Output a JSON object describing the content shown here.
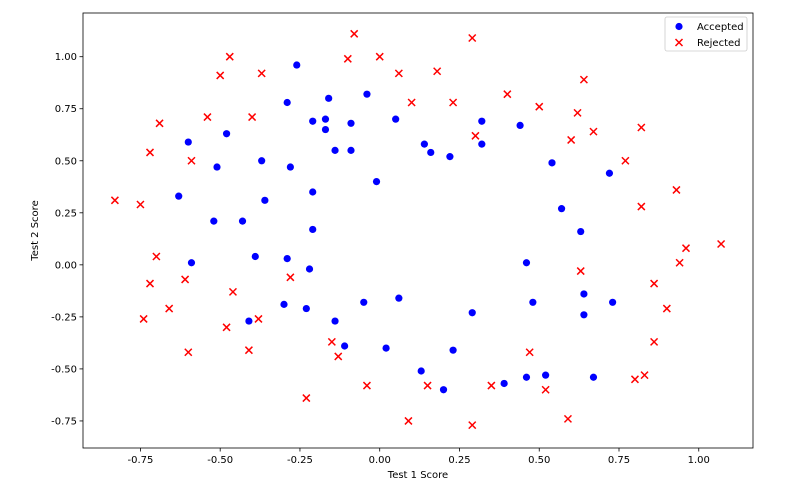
{
  "chart_data": {
    "type": "scatter",
    "xlabel": "Test 1 Score",
    "ylabel": "Test 2 Score",
    "xlim": [
      -0.93,
      1.17
    ],
    "ylim": [
      -0.88,
      1.21
    ],
    "x_ticks": [
      "-0.75",
      "-0.50",
      "-0.25",
      "0.00",
      "0.25",
      "0.50",
      "0.75",
      "1.00"
    ],
    "x_tick_values": [
      -0.75,
      -0.5,
      -0.25,
      0.0,
      0.25,
      0.5,
      0.75,
      1.0
    ],
    "y_ticks": [
      "-0.75",
      "-0.50",
      "-0.25",
      "0.00",
      "0.25",
      "0.50",
      "0.75",
      "1.00"
    ],
    "y_tick_values": [
      -0.75,
      -0.5,
      -0.25,
      0.0,
      0.25,
      0.5,
      0.75,
      1.0
    ],
    "legend_position": "top-right",
    "series": [
      {
        "name": "Accepted",
        "marker": "circle",
        "color": "#0000ff",
        "points": [
          [
            -0.26,
            0.96
          ],
          [
            -0.04,
            0.82
          ],
          [
            -0.16,
            0.8
          ],
          [
            -0.29,
            0.78
          ],
          [
            0.05,
            0.7
          ],
          [
            -0.21,
            0.69
          ],
          [
            -0.17,
            0.7
          ],
          [
            -0.09,
            0.68
          ],
          [
            0.32,
            0.69
          ],
          [
            -0.17,
            0.65
          ],
          [
            0.44,
            0.67
          ],
          [
            -0.48,
            0.63
          ],
          [
            -0.6,
            0.59
          ],
          [
            0.14,
            0.58
          ],
          [
            0.32,
            0.58
          ],
          [
            -0.14,
            0.55
          ],
          [
            -0.09,
            0.55
          ],
          [
            0.16,
            0.54
          ],
          [
            0.22,
            0.52
          ],
          [
            -0.37,
            0.5
          ],
          [
            0.54,
            0.49
          ],
          [
            -0.51,
            0.47
          ],
          [
            -0.28,
            0.47
          ],
          [
            0.72,
            0.44
          ],
          [
            -0.01,
            0.4
          ],
          [
            -0.21,
            0.35
          ],
          [
            -0.63,
            0.33
          ],
          [
            -0.36,
            0.31
          ],
          [
            0.57,
            0.27
          ],
          [
            -0.52,
            0.21
          ],
          [
            -0.43,
            0.21
          ],
          [
            -0.21,
            0.17
          ],
          [
            0.63,
            0.16
          ],
          [
            -0.39,
            0.04
          ],
          [
            -0.29,
            0.03
          ],
          [
            -0.59,
            0.01
          ],
          [
            0.46,
            0.01
          ],
          [
            -0.22,
            -0.02
          ],
          [
            0.64,
            -0.14
          ],
          [
            -0.05,
            -0.18
          ],
          [
            0.48,
            -0.18
          ],
          [
            0.73,
            -0.18
          ],
          [
            0.06,
            -0.16
          ],
          [
            -0.3,
            -0.19
          ],
          [
            -0.23,
            -0.21
          ],
          [
            0.29,
            -0.23
          ],
          [
            0.64,
            -0.24
          ],
          [
            -0.41,
            -0.27
          ],
          [
            -0.14,
            -0.27
          ],
          [
            -0.11,
            -0.39
          ],
          [
            0.02,
            -0.4
          ],
          [
            0.23,
            -0.41
          ],
          [
            0.13,
            -0.51
          ],
          [
            0.52,
            -0.53
          ],
          [
            0.46,
            -0.54
          ],
          [
            0.67,
            -0.54
          ],
          [
            0.39,
            -0.57
          ],
          [
            0.2,
            -0.6
          ]
        ]
      },
      {
        "name": "Rejected",
        "marker": "x",
        "color": "#ff0000",
        "points": [
          [
            -0.08,
            1.11
          ],
          [
            0.29,
            1.09
          ],
          [
            -0.47,
            1.0
          ],
          [
            -0.1,
            0.99
          ],
          [
            0.0,
            1.0
          ],
          [
            -0.5,
            0.91
          ],
          [
            -0.37,
            0.92
          ],
          [
            0.06,
            0.92
          ],
          [
            0.18,
            0.93
          ],
          [
            0.64,
            0.89
          ],
          [
            0.4,
            0.82
          ],
          [
            0.1,
            0.78
          ],
          [
            0.23,
            0.78
          ],
          [
            0.5,
            0.76
          ],
          [
            0.62,
            0.73
          ],
          [
            -0.54,
            0.71
          ],
          [
            -0.4,
            0.71
          ],
          [
            -0.69,
            0.68
          ],
          [
            0.82,
            0.66
          ],
          [
            0.67,
            0.64
          ],
          [
            0.3,
            0.62
          ],
          [
            0.6,
            0.6
          ],
          [
            -0.72,
            0.54
          ],
          [
            -0.59,
            0.5
          ],
          [
            0.77,
            0.5
          ],
          [
            0.93,
            0.36
          ],
          [
            -0.83,
            0.31
          ],
          [
            -0.75,
            0.29
          ],
          [
            0.82,
            0.28
          ],
          [
            1.07,
            0.1
          ],
          [
            0.96,
            0.08
          ],
          [
            0.94,
            0.01
          ],
          [
            -0.7,
            0.04
          ],
          [
            0.63,
            -0.03
          ],
          [
            -0.61,
            -0.07
          ],
          [
            -0.28,
            -0.06
          ],
          [
            -0.72,
            -0.09
          ],
          [
            0.86,
            -0.09
          ],
          [
            -0.46,
            -0.13
          ],
          [
            0.9,
            -0.21
          ],
          [
            -0.66,
            -0.21
          ],
          [
            -0.74,
            -0.26
          ],
          [
            -0.38,
            -0.26
          ],
          [
            -0.48,
            -0.3
          ],
          [
            -0.15,
            -0.37
          ],
          [
            0.86,
            -0.37
          ],
          [
            -0.6,
            -0.42
          ],
          [
            -0.41,
            -0.41
          ],
          [
            0.47,
            -0.42
          ],
          [
            -0.13,
            -0.44
          ],
          [
            0.83,
            -0.53
          ],
          [
            0.8,
            -0.55
          ],
          [
            -0.04,
            -0.58
          ],
          [
            0.15,
            -0.58
          ],
          [
            0.35,
            -0.58
          ],
          [
            0.52,
            -0.6
          ],
          [
            -0.23,
            -0.64
          ],
          [
            0.59,
            -0.74
          ],
          [
            0.09,
            -0.75
          ],
          [
            0.29,
            -0.77
          ]
        ]
      }
    ]
  }
}
